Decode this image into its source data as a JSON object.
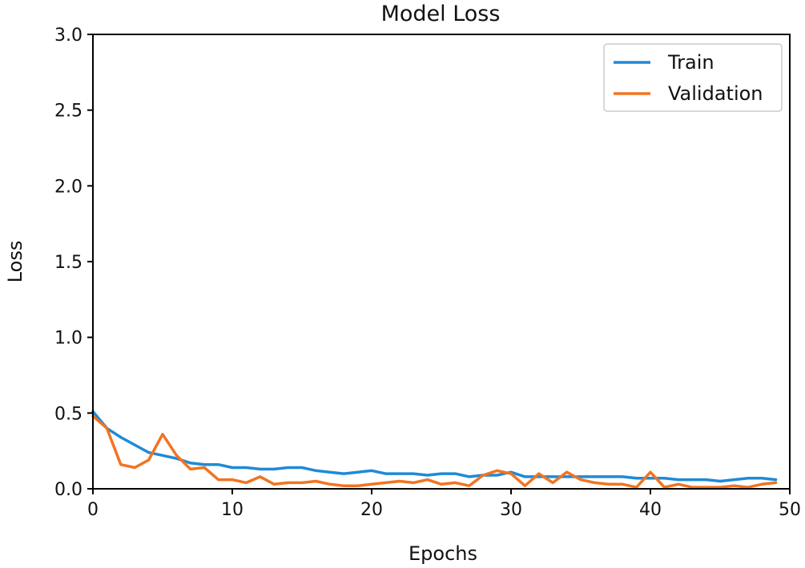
{
  "chart_data": {
    "type": "line",
    "title": "Model Loss",
    "xlabel": "Epochs",
    "ylabel": "Loss",
    "xlim": [
      0,
      50
    ],
    "ylim": [
      0,
      3.0
    ],
    "xticks": [
      "0",
      "10",
      "20",
      "30",
      "40",
      "50"
    ],
    "yticks": [
      "0.0",
      "0.5",
      "1.0",
      "1.5",
      "2.0",
      "2.5",
      "3.0"
    ],
    "grid": false,
    "legend_position": "top-right",
    "x": [
      0,
      1,
      2,
      3,
      4,
      5,
      6,
      7,
      8,
      9,
      10,
      11,
      12,
      13,
      14,
      15,
      16,
      17,
      18,
      19,
      20,
      21,
      22,
      23,
      24,
      25,
      26,
      27,
      28,
      29,
      30,
      31,
      32,
      33,
      34,
      35,
      36,
      37,
      38,
      39,
      40,
      41,
      42,
      43,
      44,
      45,
      46,
      47,
      48,
      49
    ],
    "series": [
      {
        "name": "Train",
        "color": "#1f8ad6",
        "values": [
          0.51,
          0.4,
          0.34,
          0.29,
          0.24,
          0.22,
          0.2,
          0.17,
          0.16,
          0.16,
          0.14,
          0.14,
          0.13,
          0.13,
          0.14,
          0.14,
          0.12,
          0.11,
          0.1,
          0.11,
          0.12,
          0.1,
          0.1,
          0.1,
          0.09,
          0.1,
          0.1,
          0.08,
          0.09,
          0.09,
          0.11,
          0.08,
          0.08,
          0.08,
          0.08,
          0.08,
          0.08,
          0.08,
          0.08,
          0.07,
          0.07,
          0.07,
          0.06,
          0.06,
          0.06,
          0.05,
          0.06,
          0.07,
          0.07,
          0.06
        ]
      },
      {
        "name": "Validation",
        "color": "#f27420",
        "values": [
          0.48,
          0.4,
          0.16,
          0.14,
          0.19,
          0.36,
          0.22,
          0.13,
          0.14,
          0.06,
          0.06,
          0.04,
          0.08,
          0.03,
          0.04,
          0.04,
          0.05,
          0.03,
          0.02,
          0.02,
          0.03,
          0.04,
          0.05,
          0.04,
          0.06,
          0.03,
          0.04,
          0.02,
          0.09,
          0.12,
          0.1,
          0.02,
          0.1,
          0.04,
          0.11,
          0.06,
          0.04,
          0.03,
          0.03,
          0.01,
          0.11,
          0.01,
          0.03,
          0.01,
          0.01,
          0.01,
          0.02,
          0.01,
          0.03,
          0.04
        ]
      }
    ]
  }
}
